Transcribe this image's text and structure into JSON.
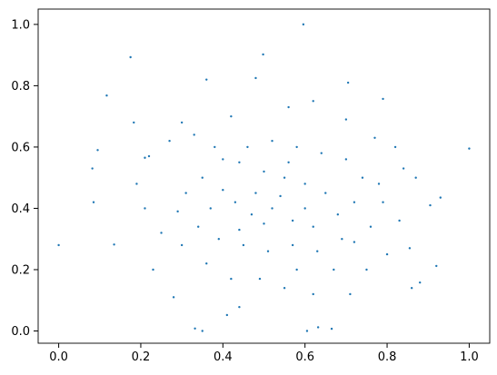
{
  "chart_data": {
    "type": "scatter",
    "title": "",
    "xlabel": "",
    "ylabel": "",
    "xlim": [
      -0.05,
      1.05
    ],
    "ylim": [
      -0.04,
      1.05
    ],
    "xticks": [
      "0.0",
      "0.2",
      "0.4",
      "0.6",
      "0.8",
      "1.0"
    ],
    "yticks": [
      "0.0",
      "0.2",
      "0.4",
      "0.6",
      "0.8",
      "1.0"
    ],
    "grid": false,
    "legend": "none",
    "marker_color": "#1f77b4",
    "points": [
      [
        0.0,
        0.28
      ],
      [
        0.596,
        1.0
      ],
      [
        1.0,
        0.595
      ],
      [
        0.175,
        0.893
      ],
      [
        0.117,
        0.768
      ],
      [
        0.332,
        0.008
      ],
      [
        0.35,
        0.0
      ],
      [
        0.605,
        0.0
      ],
      [
        0.632,
        0.012
      ],
      [
        0.665,
        0.007
      ],
      [
        0.92,
        0.212
      ],
      [
        0.88,
        0.158
      ],
      [
        0.095,
        0.59
      ],
      [
        0.082,
        0.53
      ],
      [
        0.085,
        0.42
      ],
      [
        0.135,
        0.282
      ],
      [
        0.183,
        0.68
      ],
      [
        0.21,
        0.565
      ],
      [
        0.48,
        0.825
      ],
      [
        0.498,
        0.902
      ],
      [
        0.705,
        0.81
      ],
      [
        0.79,
        0.757
      ],
      [
        0.93,
        0.435
      ],
      [
        0.905,
        0.41
      ],
      [
        0.855,
        0.27
      ],
      [
        0.86,
        0.14
      ],
      [
        0.23,
        0.2
      ],
      [
        0.28,
        0.11
      ],
      [
        0.41,
        0.052
      ],
      [
        0.44,
        0.078
      ],
      [
        0.55,
        0.14
      ],
      [
        0.62,
        0.12
      ],
      [
        0.71,
        0.12
      ],
      [
        0.75,
        0.2
      ],
      [
        0.3,
        0.68
      ],
      [
        0.36,
        0.82
      ],
      [
        0.42,
        0.7
      ],
      [
        0.56,
        0.73
      ],
      [
        0.62,
        0.75
      ],
      [
        0.7,
        0.69
      ],
      [
        0.77,
        0.63
      ],
      [
        0.82,
        0.6
      ],
      [
        0.84,
        0.53
      ],
      [
        0.87,
        0.5
      ],
      [
        0.83,
        0.36
      ],
      [
        0.8,
        0.25
      ],
      [
        0.72,
        0.29
      ],
      [
        0.67,
        0.2
      ],
      [
        0.58,
        0.2
      ],
      [
        0.49,
        0.17
      ],
      [
        0.42,
        0.17
      ],
      [
        0.36,
        0.22
      ],
      [
        0.3,
        0.28
      ],
      [
        0.25,
        0.32
      ],
      [
        0.21,
        0.4
      ],
      [
        0.19,
        0.48
      ],
      [
        0.22,
        0.57
      ],
      [
        0.27,
        0.62
      ],
      [
        0.33,
        0.64
      ],
      [
        0.38,
        0.6
      ],
      [
        0.44,
        0.55
      ],
      [
        0.5,
        0.52
      ],
      [
        0.55,
        0.5
      ],
      [
        0.6,
        0.48
      ],
      [
        0.65,
        0.45
      ],
      [
        0.52,
        0.4
      ],
      [
        0.47,
        0.38
      ],
      [
        0.43,
        0.42
      ],
      [
        0.4,
        0.46
      ],
      [
        0.57,
        0.36
      ],
      [
        0.62,
        0.34
      ],
      [
        0.68,
        0.38
      ],
      [
        0.72,
        0.42
      ],
      [
        0.74,
        0.5
      ],
      [
        0.7,
        0.56
      ],
      [
        0.64,
        0.58
      ],
      [
        0.58,
        0.6
      ],
      [
        0.52,
        0.62
      ],
      [
        0.46,
        0.6
      ],
      [
        0.4,
        0.56
      ],
      [
        0.35,
        0.5
      ],
      [
        0.31,
        0.45
      ],
      [
        0.29,
        0.39
      ],
      [
        0.34,
        0.34
      ],
      [
        0.39,
        0.3
      ],
      [
        0.45,
        0.28
      ],
      [
        0.51,
        0.26
      ],
      [
        0.57,
        0.28
      ],
      [
        0.63,
        0.26
      ],
      [
        0.69,
        0.3
      ],
      [
        0.76,
        0.34
      ],
      [
        0.79,
        0.42
      ],
      [
        0.78,
        0.48
      ],
      [
        0.48,
        0.45
      ],
      [
        0.54,
        0.44
      ],
      [
        0.5,
        0.35
      ],
      [
        0.44,
        0.33
      ],
      [
        0.56,
        0.55
      ],
      [
        0.6,
        0.4
      ],
      [
        0.37,
        0.4
      ]
    ]
  }
}
